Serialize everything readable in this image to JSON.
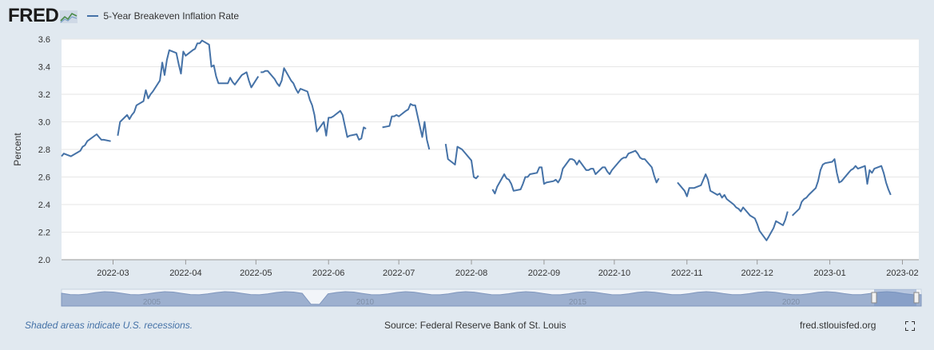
{
  "header": {
    "logo_text": "FRED",
    "legend_label": "5-Year Breakeven Inflation Rate"
  },
  "footer": {
    "recessions_note": "Shaded areas indicate U.S. recessions.",
    "source": "Source: Federal Reserve Bank of St. Louis",
    "site": "fred.stlouisfed.org"
  },
  "icons": {
    "logo": "fred-chart-icon",
    "fullscreen": "fullscreen-icon"
  },
  "colors": {
    "series": "#4572a7",
    "background": "#e1e9f0",
    "plot_background": "#ffffff",
    "navigator_fill": "#9db0cf"
  },
  "chart_data": {
    "type": "line",
    "title": "",
    "xlabel": "",
    "ylabel": "Percent",
    "ylim": [
      2.0,
      3.6
    ],
    "yticks": [
      "2.0",
      "2.2",
      "2.4",
      "2.6",
      "2.8",
      "3.0",
      "3.2",
      "3.4",
      "3.6"
    ],
    "xticks": [
      "2022-03",
      "2022-04",
      "2022-05",
      "2022-06",
      "2022-07",
      "2022-08",
      "2022-09",
      "2022-10",
      "2022-11",
      "2022-12",
      "2023-01",
      "2023-02"
    ],
    "x_range": [
      "2022-02-07",
      "2023-02-08"
    ],
    "grid": true,
    "navigator_labels": [
      "2005",
      "2010",
      "2015",
      "2020"
    ],
    "series": [
      {
        "name": "5-Year Breakeven Inflation Rate",
        "segments": [
          [
            [
              "2022-02-07",
              2.75
            ],
            [
              "2022-02-08",
              2.77
            ],
            [
              "2022-02-11",
              2.75
            ],
            [
              "2022-02-14",
              2.78
            ],
            [
              "2022-02-15",
              2.79
            ],
            [
              "2022-02-16",
              2.82
            ],
            [
              "2022-02-17",
              2.83
            ],
            [
              "2022-02-18",
              2.86
            ],
            [
              "2022-02-22",
              2.91
            ],
            [
              "2022-02-23",
              2.89
            ],
            [
              "2022-02-24",
              2.87
            ],
            [
              "2022-02-25",
              2.87
            ],
            [
              "2022-02-28",
              2.86
            ]
          ],
          [
            [
              "2022-03-03",
              2.9
            ],
            [
              "2022-03-04",
              3.0
            ],
            [
              "2022-03-07",
              3.05
            ],
            [
              "2022-03-08",
              3.02
            ],
            [
              "2022-03-09",
              3.05
            ],
            [
              "2022-03-10",
              3.07
            ],
            [
              "2022-03-11",
              3.12
            ],
            [
              "2022-03-14",
              3.15
            ],
            [
              "2022-03-15",
              3.23
            ],
            [
              "2022-03-16",
              3.17
            ],
            [
              "2022-03-17",
              3.2
            ],
            [
              "2022-03-18",
              3.22
            ],
            [
              "2022-03-21",
              3.3
            ],
            [
              "2022-03-22",
              3.43
            ],
            [
              "2022-03-23",
              3.34
            ],
            [
              "2022-03-24",
              3.45
            ],
            [
              "2022-03-25",
              3.52
            ],
            [
              "2022-03-28",
              3.5
            ],
            [
              "2022-03-29",
              3.42
            ],
            [
              "2022-03-30",
              3.35
            ],
            [
              "2022-03-31",
              3.51
            ],
            [
              "2022-04-01",
              3.48
            ],
            [
              "2022-04-04",
              3.52
            ],
            [
              "2022-04-05",
              3.53
            ],
            [
              "2022-04-06",
              3.57
            ],
            [
              "2022-04-07",
              3.57
            ],
            [
              "2022-04-08",
              3.59
            ],
            [
              "2022-04-11",
              3.56
            ],
            [
              "2022-04-12",
              3.4
            ],
            [
              "2022-04-13",
              3.41
            ],
            [
              "2022-04-14",
              3.33
            ],
            [
              "2022-04-15",
              3.28
            ],
            [
              "2022-04-18",
              3.28
            ],
            [
              "2022-04-19",
              3.28
            ],
            [
              "2022-04-20",
              3.32
            ],
            [
              "2022-04-21",
              3.29
            ],
            [
              "2022-04-22",
              3.27
            ],
            [
              "2022-04-25",
              3.34
            ],
            [
              "2022-04-26",
              3.35
            ],
            [
              "2022-04-27",
              3.36
            ],
            [
              "2022-04-28",
              3.3
            ],
            [
              "2022-04-29",
              3.25
            ],
            [
              "2022-05-02",
              3.33
            ]
          ],
          [
            [
              "2022-05-03",
              3.36
            ],
            [
              "2022-05-04",
              3.36
            ],
            [
              "2022-05-05",
              3.37
            ],
            [
              "2022-05-06",
              3.37
            ],
            [
              "2022-05-09",
              3.31
            ],
            [
              "2022-05-10",
              3.28
            ],
            [
              "2022-05-11",
              3.26
            ],
            [
              "2022-05-12",
              3.3
            ],
            [
              "2022-05-13",
              3.39
            ],
            [
              "2022-05-16",
              3.3
            ],
            [
              "2022-05-17",
              3.28
            ],
            [
              "2022-05-18",
              3.24
            ],
            [
              "2022-05-19",
              3.21
            ],
            [
              "2022-05-20",
              3.24
            ],
            [
              "2022-05-23",
              3.22
            ],
            [
              "2022-05-24",
              3.16
            ],
            [
              "2022-05-25",
              3.12
            ],
            [
              "2022-05-26",
              3.05
            ],
            [
              "2022-05-27",
              2.93
            ],
            [
              "2022-05-30",
              3.0
            ],
            [
              "2022-05-31",
              2.9
            ],
            [
              "2022-06-01",
              3.03
            ],
            [
              "2022-06-02",
              3.03
            ],
            [
              "2022-06-03",
              3.04
            ],
            [
              "2022-06-06",
              3.08
            ],
            [
              "2022-06-07",
              3.05
            ],
            [
              "2022-06-08",
              2.97
            ],
            [
              "2022-06-09",
              2.89
            ],
            [
              "2022-06-10",
              2.9
            ],
            [
              "2022-06-13",
              2.91
            ],
            [
              "2022-06-14",
              2.87
            ],
            [
              "2022-06-15",
              2.88
            ],
            [
              "2022-06-16",
              2.96
            ],
            [
              "2022-06-17",
              2.95
            ]
          ],
          [
            [
              "2022-06-24",
              2.96
            ],
            [
              "2022-06-27",
              2.97
            ],
            [
              "2022-06-28",
              3.04
            ],
            [
              "2022-06-29",
              3.04
            ],
            [
              "2022-06-30",
              3.05
            ],
            [
              "2022-07-01",
              3.04
            ],
            [
              "2022-07-04",
              3.08
            ],
            [
              "2022-07-05",
              3.09
            ],
            [
              "2022-07-06",
              3.13
            ],
            [
              "2022-07-07",
              3.12
            ],
            [
              "2022-07-08",
              3.12
            ],
            [
              "2022-07-11",
              2.89
            ],
            [
              "2022-07-12",
              3.0
            ],
            [
              "2022-07-13",
              2.87
            ],
            [
              "2022-07-14",
              2.8
            ]
          ],
          [
            [
              "2022-07-21",
              2.84
            ],
            [
              "2022-07-22",
              2.73
            ],
            [
              "2022-07-25",
              2.69
            ],
            [
              "2022-07-26",
              2.82
            ],
            [
              "2022-07-27",
              2.81
            ],
            [
              "2022-07-28",
              2.8
            ],
            [
              "2022-07-29",
              2.78
            ],
            [
              "2022-08-01",
              2.72
            ],
            [
              "2022-08-02",
              2.6
            ],
            [
              "2022-08-03",
              2.59
            ],
            [
              "2022-08-04",
              2.61
            ]
          ],
          [
            [
              "2022-08-10",
              2.51
            ],
            [
              "2022-08-11",
              2.48
            ],
            [
              "2022-08-12",
              2.53
            ],
            [
              "2022-08-15",
              2.62
            ],
            [
              "2022-08-16",
              2.59
            ],
            [
              "2022-08-17",
              2.58
            ],
            [
              "2022-08-18",
              2.55
            ],
            [
              "2022-08-19",
              2.5
            ],
            [
              "2022-08-22",
              2.51
            ],
            [
              "2022-08-23",
              2.55
            ],
            [
              "2022-08-24",
              2.6
            ],
            [
              "2022-08-25",
              2.6
            ],
            [
              "2022-08-26",
              2.62
            ],
            [
              "2022-08-29",
              2.63
            ],
            [
              "2022-08-30",
              2.67
            ],
            [
              "2022-08-31",
              2.67
            ],
            [
              "2022-09-01",
              2.55
            ],
            [
              "2022-09-02",
              2.56
            ],
            [
              "2022-09-05",
              2.57
            ],
            [
              "2022-09-06",
              2.58
            ],
            [
              "2022-09-07",
              2.56
            ],
            [
              "2022-09-08",
              2.59
            ],
            [
              "2022-09-09",
              2.66
            ],
            [
              "2022-09-12",
              2.73
            ],
            [
              "2022-09-13",
              2.73
            ],
            [
              "2022-09-14",
              2.72
            ],
            [
              "2022-09-15",
              2.69
            ],
            [
              "2022-09-16",
              2.72
            ],
            [
              "2022-09-19",
              2.65
            ],
            [
              "2022-09-20",
              2.65
            ],
            [
              "2022-09-21",
              2.66
            ],
            [
              "2022-09-22",
              2.66
            ],
            [
              "2022-09-23",
              2.62
            ],
            [
              "2022-09-26",
              2.67
            ],
            [
              "2022-09-27",
              2.67
            ],
            [
              "2022-09-28",
              2.64
            ],
            [
              "2022-09-29",
              2.62
            ],
            [
              "2022-09-30",
              2.65
            ],
            [
              "2022-10-03",
              2.71
            ],
            [
              "2022-10-04",
              2.73
            ],
            [
              "2022-10-05",
              2.74
            ],
            [
              "2022-10-06",
              2.74
            ],
            [
              "2022-10-07",
              2.77
            ],
            [
              "2022-10-10",
              2.79
            ],
            [
              "2022-10-11",
              2.77
            ],
            [
              "2022-10-12",
              2.74
            ],
            [
              "2022-10-13",
              2.73
            ],
            [
              "2022-10-14",
              2.73
            ],
            [
              "2022-10-17",
              2.67
            ],
            [
              "2022-10-18",
              2.61
            ],
            [
              "2022-10-19",
              2.56
            ],
            [
              "2022-10-20",
              2.59
            ]
          ],
          [
            [
              "2022-10-28",
              2.56
            ],
            [
              "2022-10-31",
              2.5
            ],
            [
              "2022-11-01",
              2.46
            ],
            [
              "2022-11-02",
              2.52
            ],
            [
              "2022-11-03",
              2.52
            ],
            [
              "2022-11-04",
              2.52
            ],
            [
              "2022-11-07",
              2.54
            ],
            [
              "2022-11-08",
              2.58
            ],
            [
              "2022-11-09",
              2.62
            ],
            [
              "2022-11-10",
              2.58
            ],
            [
              "2022-11-11",
              2.5
            ],
            [
              "2022-11-14",
              2.47
            ],
            [
              "2022-11-15",
              2.48
            ],
            [
              "2022-11-16",
              2.45
            ],
            [
              "2022-11-17",
              2.47
            ],
            [
              "2022-11-18",
              2.44
            ],
            [
              "2022-11-21",
              2.4
            ],
            [
              "2022-11-22",
              2.38
            ],
            [
              "2022-11-23",
              2.37
            ],
            [
              "2022-11-24",
              2.35
            ],
            [
              "2022-11-25",
              2.38
            ],
            [
              "2022-11-28",
              2.32
            ],
            [
              "2022-11-29",
              2.31
            ],
            [
              "2022-11-30",
              2.3
            ],
            [
              "2022-12-01",
              2.26
            ],
            [
              "2022-12-02",
              2.21
            ],
            [
              "2022-12-05",
              2.14
            ],
            [
              "2022-12-06",
              2.17
            ],
            [
              "2022-12-07",
              2.2
            ],
            [
              "2022-12-08",
              2.23
            ],
            [
              "2022-12-09",
              2.28
            ],
            [
              "2022-12-12",
              2.25
            ],
            [
              "2022-12-13",
              2.29
            ],
            [
              "2022-12-14",
              2.35
            ]
          ],
          [
            [
              "2022-12-16",
              2.32
            ],
            [
              "2022-12-19",
              2.37
            ],
            [
              "2022-12-20",
              2.42
            ],
            [
              "2022-12-21",
              2.44
            ],
            [
              "2022-12-22",
              2.45
            ],
            [
              "2022-12-23",
              2.47
            ],
            [
              "2022-12-26",
              2.52
            ],
            [
              "2022-12-27",
              2.57
            ],
            [
              "2022-12-28",
              2.65
            ],
            [
              "2022-12-29",
              2.69
            ],
            [
              "2022-12-30",
              2.7
            ],
            [
              "2023-01-02",
              2.71
            ],
            [
              "2023-01-03",
              2.73
            ],
            [
              "2023-01-04",
              2.63
            ],
            [
              "2023-01-05",
              2.56
            ],
            [
              "2023-01-06",
              2.57
            ],
            [
              "2023-01-09",
              2.63
            ],
            [
              "2023-01-10",
              2.65
            ],
            [
              "2023-01-11",
              2.66
            ],
            [
              "2023-01-12",
              2.68
            ],
            [
              "2023-01-13",
              2.66
            ],
            [
              "2023-01-16",
              2.68
            ],
            [
              "2023-01-17",
              2.55
            ],
            [
              "2023-01-18",
              2.65
            ],
            [
              "2023-01-19",
              2.63
            ],
            [
              "2023-01-20",
              2.66
            ],
            [
              "2023-01-23",
              2.68
            ],
            [
              "2023-01-24",
              2.63
            ],
            [
              "2023-01-25",
              2.56
            ],
            [
              "2023-01-26",
              2.51
            ],
            [
              "2023-01-27",
              2.47
            ]
          ]
        ]
      }
    ]
  }
}
